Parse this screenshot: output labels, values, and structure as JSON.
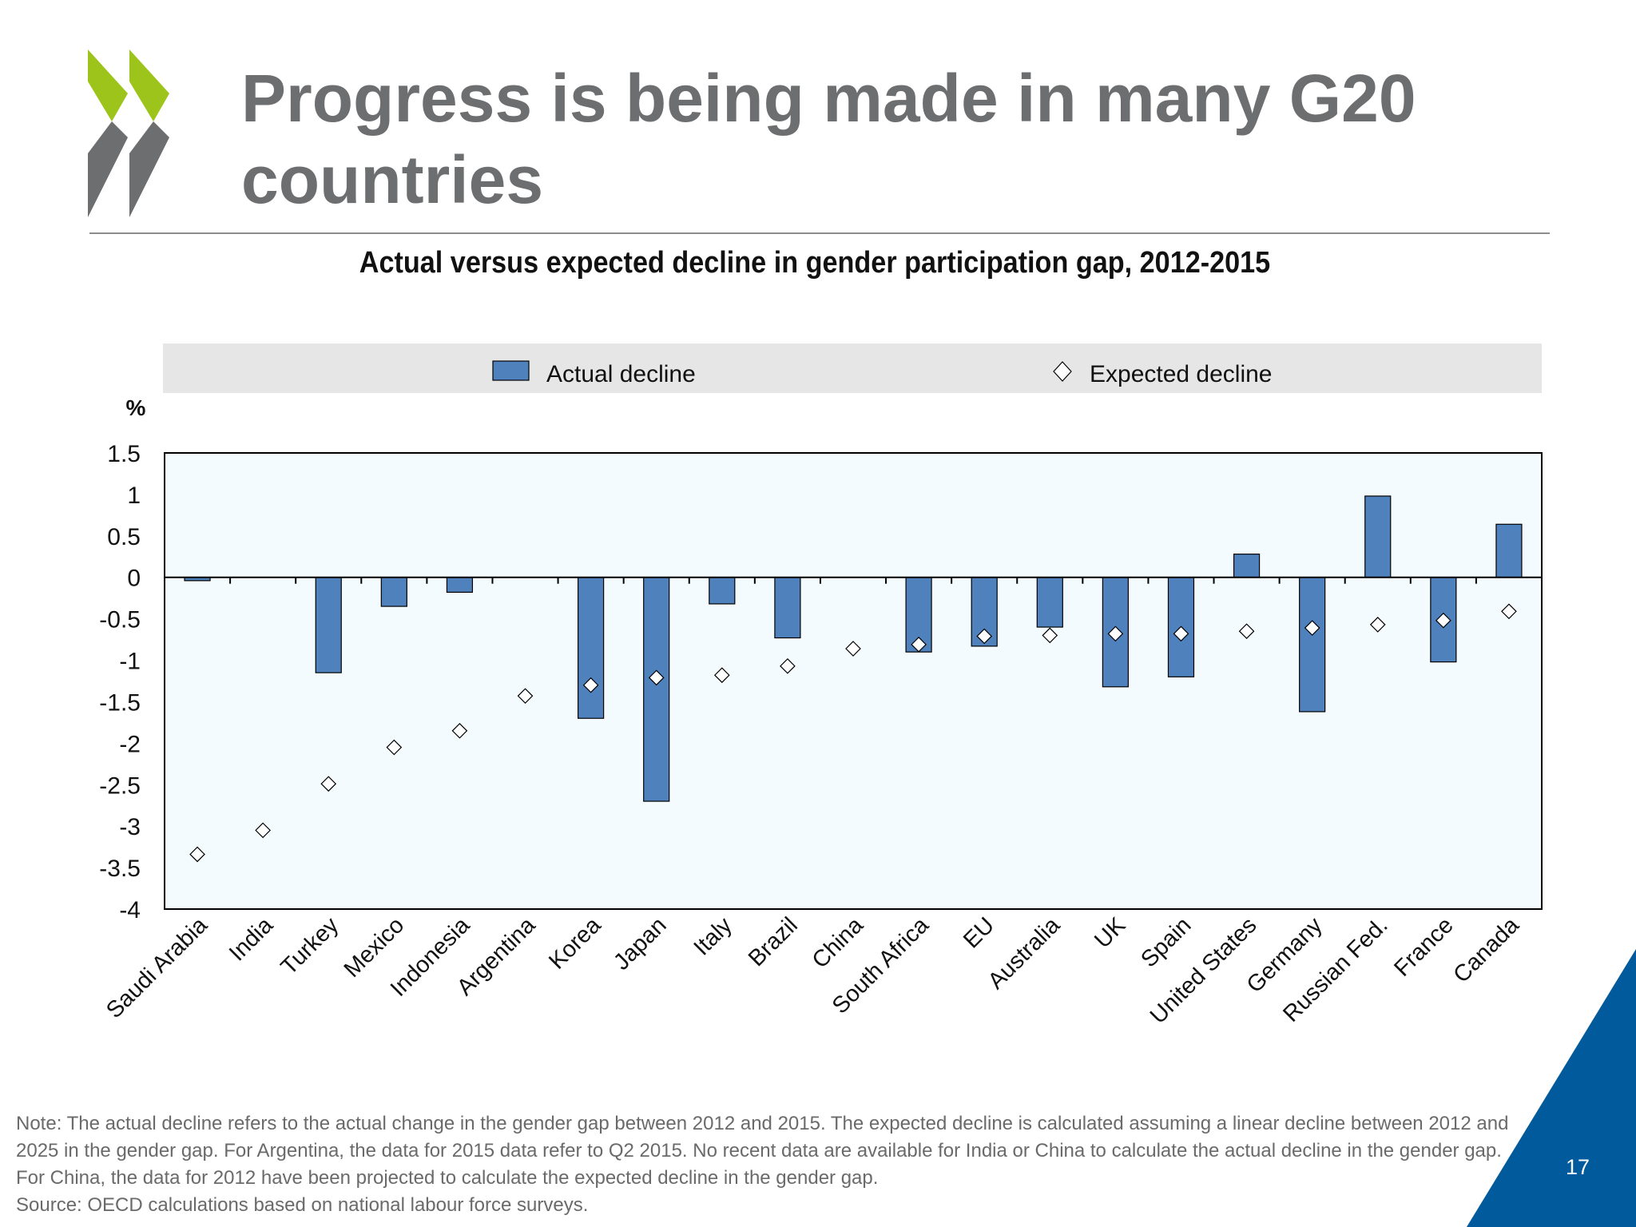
{
  "slide": {
    "title": "Progress is being made in many G20 countries",
    "page_number": "17",
    "note": "Note: The actual decline refers to the actual change in the gender gap between 2012 and 2015. The expected decline is calculated assuming a linear decline between 2012 and 2025 in the gender gap. For Argentina, the data for 2015 data refer to Q2 2015. No recent data are available for India or China to calculate the actual decline in the gender gap.  For China, the data for 2012 have been projected to calculate the expected decline in the gender gap.",
    "source": "Source: OECD calculations based on national labour force surveys."
  },
  "colors": {
    "title_gray": "#6d6e70",
    "logo_green": "#9dc41a",
    "logo_gray": "#6d6e70",
    "bar_fill": "#4f81bd",
    "plot_background": "#f4fbfe",
    "legend_background": "#e6e6e6",
    "corner_blue": "#005a9c"
  },
  "chart_data": {
    "type": "bar",
    "title": "Actual versus expected decline in gender participation gap, 2012-2015",
    "ylabel": "%",
    "ylim": [
      -4,
      1.5
    ],
    "yticks": [
      "1.5",
      "1",
      "0.5",
      "0",
      "-0.5",
      "-1",
      "-1.5",
      "-2",
      "-2.5",
      "-3",
      "-3.5",
      "-4"
    ],
    "legend_position": "top",
    "categories": [
      "Saudi Arabia",
      "India",
      "Turkey",
      "Mexico",
      "Indonesia",
      "Argentina",
      "Korea",
      "Japan",
      "Italy",
      "Brazil",
      "China",
      "South Africa",
      "EU",
      "Australia",
      "UK",
      "Spain",
      "United States",
      "Germany",
      "Russian Fed.",
      "France",
      "Canada"
    ],
    "series": [
      {
        "name": "Actual decline",
        "kind": "bar",
        "values": [
          -0.04,
          null,
          -1.15,
          -0.35,
          -0.18,
          null,
          -1.7,
          -2.7,
          -0.32,
          -0.73,
          null,
          -0.9,
          -0.83,
          -0.6,
          -1.32,
          -1.2,
          0.28,
          -1.62,
          0.98,
          -1.02,
          0.64
        ]
      },
      {
        "name": "Expected decline",
        "kind": "marker",
        "values": [
          -3.34,
          -3.05,
          -2.49,
          -2.05,
          -1.85,
          -1.43,
          -1.3,
          -1.21,
          -1.18,
          -1.07,
          -0.86,
          -0.81,
          -0.71,
          -0.7,
          -0.68,
          -0.68,
          -0.65,
          -0.61,
          -0.57,
          -0.52,
          -0.41
        ]
      }
    ]
  }
}
